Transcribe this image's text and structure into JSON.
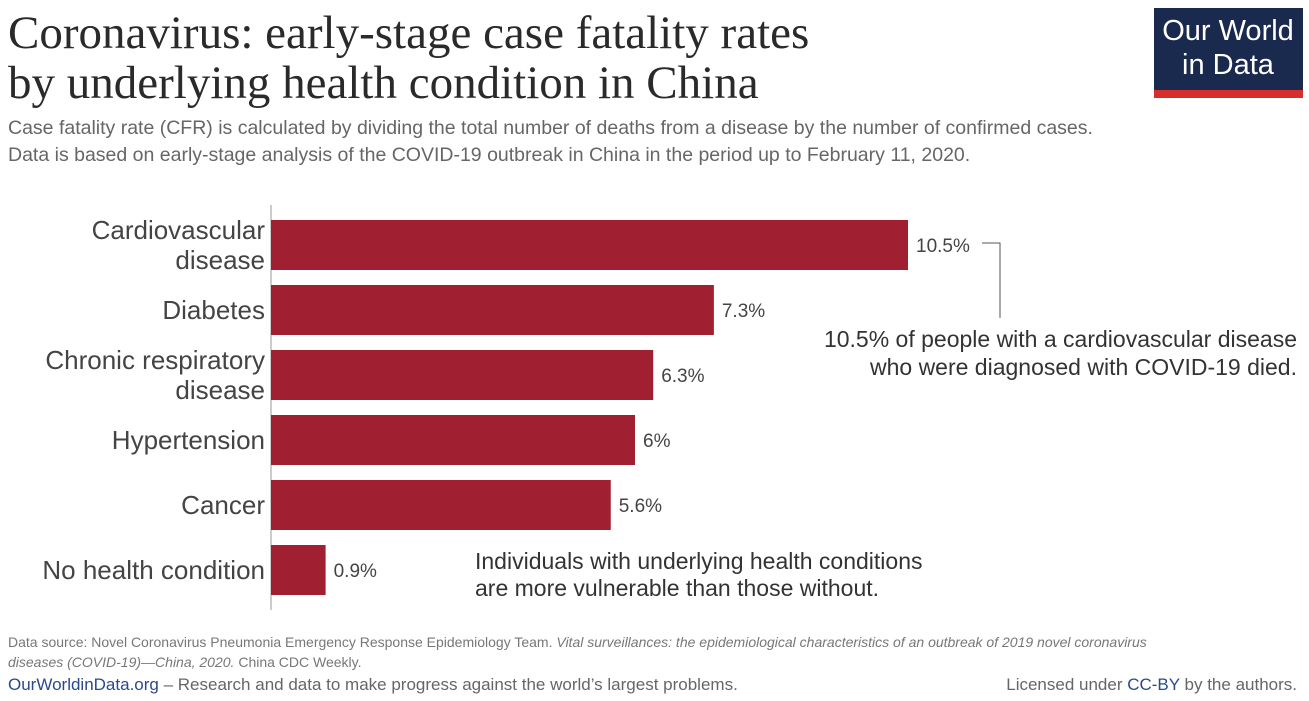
{
  "chart_data": {
    "type": "bar",
    "title": "Coronavirus: early-stage case fatality rates\nby underlying health condition in China",
    "subtitle": "Case fatality rate (CFR) is calculated by dividing the total number of deaths from a disease by the number of confirmed cases.\nData is based on early-stage analysis of the COVID-19 outbreak in China in the period up to February 11, 2020.",
    "categories": [
      "Cardiovascular\ndisease",
      "Diabetes",
      "Chronic respiratory\ndisease",
      "Hypertension",
      "Cancer",
      "No health condition"
    ],
    "values": [
      10.5,
      7.3,
      6.3,
      6,
      5.6,
      0.9
    ],
    "value_labels": [
      "10.5%",
      "7.3%",
      "6.3%",
      "6%",
      "5.6%",
      "0.9%"
    ],
    "color": "#a01f30",
    "annotations": [
      "10.5% of people with a cardiovascular disease\nwho were diagnosed with COVID-19 died.",
      "Individuals with underlying health conditions\nare more vulnerable than those without."
    ]
  },
  "logo": [
    "Our World",
    "in Data"
  ],
  "footer": {
    "source": [
      "Data source: Novel Coronavirus Pneumonia Emergency Response Epidemiology Team. ",
      "Vital surveillances: the epidemiological characteristics of an outbreak of 2019 novel coronavirus",
      "diseases (COVID-19)—China, 2020.",
      " China CDC Weekly."
    ],
    "site": "OurWorldinData.org",
    "tagline": " – Research and data to make progress against the world’s largest problems.",
    "license": [
      "Licensed under ",
      "CC-BY",
      " by the authors."
    ]
  }
}
